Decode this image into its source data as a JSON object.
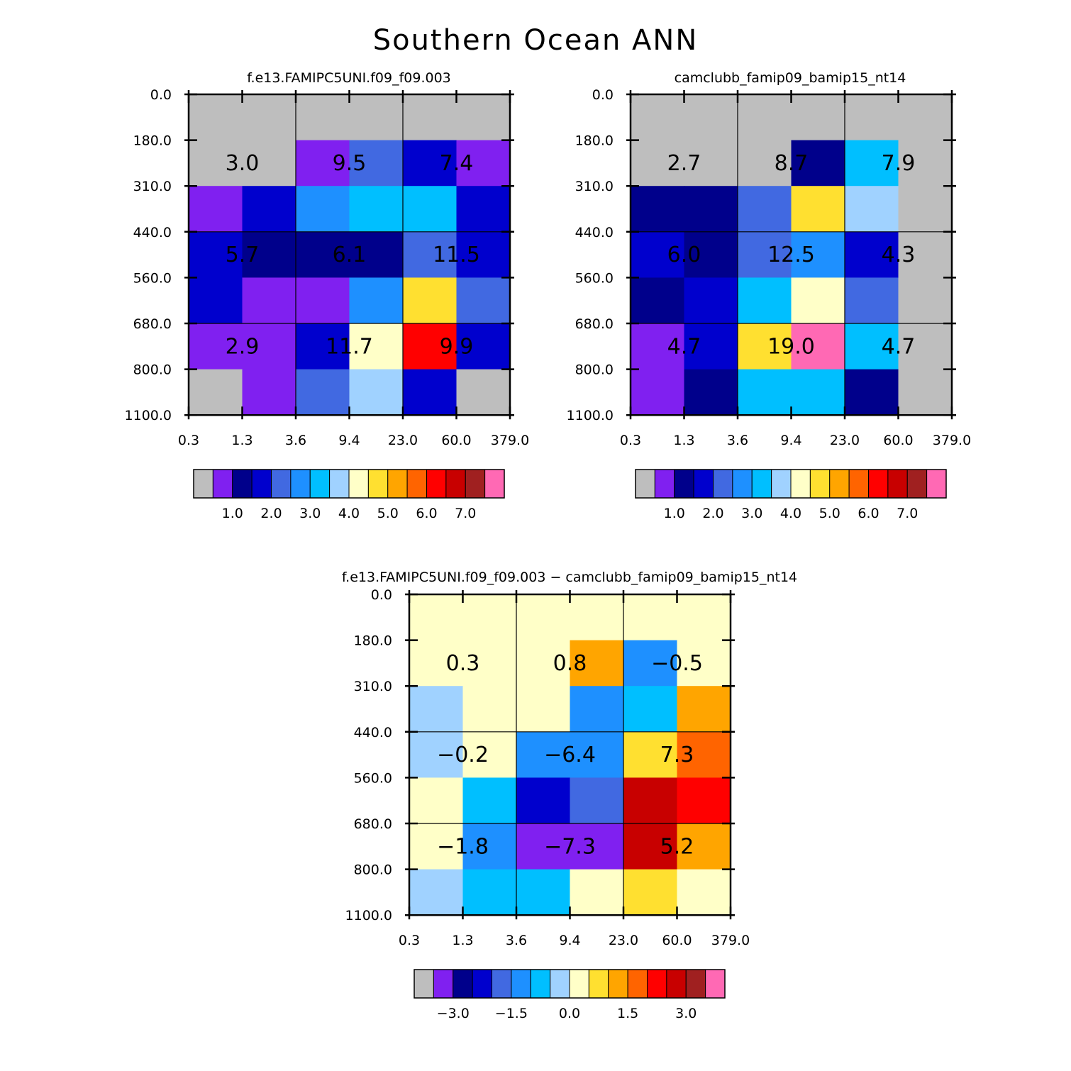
{
  "figure_title": "Southern Ocean ANN",
  "colors": {
    "abs_scale": [
      "#bebebe",
      "#8020f0",
      "#00008b",
      "#0000cd",
      "#4169e1",
      "#1e90ff",
      "#00bfff",
      "#a0d2ff",
      "#ffffc8",
      "#ffe030",
      "#ffa500",
      "#ff6400",
      "#ff0000",
      "#c80000",
      "#a02020",
      "#ff69b4"
    ],
    "diff_scale": [
      "#bebebe",
      "#8020f0",
      "#00008b",
      "#0000cd",
      "#4169e1",
      "#1e90ff",
      "#00bfff",
      "#a0d2ff",
      "#ffffc8",
      "#ffe030",
      "#ffa500",
      "#ff6400",
      "#ff0000",
      "#c80000",
      "#a02020",
      "#ff69b4"
    ]
  },
  "chart_data": [
    {
      "type": "heatmap",
      "id": "model",
      "title": "f.e13.FAMIPC5UNI.f09_f09.003",
      "x_ticks": [
        "0.3",
        "1.3",
        "3.6",
        "9.4",
        "23.0",
        "60.0",
        "379.0"
      ],
      "y_ticks": [
        "0.0",
        "180.0",
        "310.0",
        "440.0",
        "560.0",
        "680.0",
        "800.0",
        "1100.0"
      ],
      "grid": [
        [
          0,
          0,
          0,
          0,
          0,
          0
        ],
        [
          0,
          0,
          1,
          4,
          3,
          1
        ],
        [
          1,
          3,
          5,
          6,
          6,
          3
        ],
        [
          3,
          2,
          2,
          2,
          4,
          3
        ],
        [
          3,
          1,
          1,
          5,
          9,
          4
        ],
        [
          1,
          1,
          3,
          8,
          12,
          3
        ],
        [
          0,
          1,
          4,
          7,
          3,
          0
        ]
      ],
      "annotations": [
        [
          "3.0",
          "9.5",
          "7.4"
        ],
        [
          "5.7",
          "6.1",
          "11.5"
        ],
        [
          "2.9",
          "11.7",
          "9.9"
        ]
      ],
      "colorbar_labels": [
        "1.0",
        "2.0",
        "3.0",
        "4.0",
        "5.0",
        "6.0",
        "7.0"
      ],
      "scale": "abs_scale"
    },
    {
      "type": "heatmap",
      "id": "control",
      "title": "camclubb_famip09_bamip15_nt14",
      "x_ticks": [
        "0.3",
        "1.3",
        "3.6",
        "9.4",
        "23.0",
        "60.0",
        "379.0"
      ],
      "y_ticks": [
        "0.0",
        "180.0",
        "310.0",
        "440.0",
        "560.0",
        "680.0",
        "800.0",
        "1100.0"
      ],
      "grid": [
        [
          0,
          0,
          0,
          0,
          0,
          0
        ],
        [
          0,
          0,
          0,
          2,
          6,
          0
        ],
        [
          2,
          2,
          4,
          9,
          7,
          0
        ],
        [
          3,
          2,
          4,
          5,
          3,
          0
        ],
        [
          2,
          3,
          6,
          8,
          4,
          0
        ],
        [
          1,
          3,
          9,
          15,
          6,
          0
        ],
        [
          1,
          2,
          6,
          6,
          2,
          0
        ]
      ],
      "annotations": [
        [
          "2.7",
          "8.7",
          "7.9"
        ],
        [
          "6.0",
          "12.5",
          "4.3"
        ],
        [
          "4.7",
          "19.0",
          "4.7"
        ]
      ],
      "colorbar_labels": [
        "1.0",
        "2.0",
        "3.0",
        "4.0",
        "5.0",
        "6.0",
        "7.0"
      ],
      "scale": "abs_scale"
    },
    {
      "type": "heatmap",
      "id": "difference",
      "title": "f.e13.FAMIPC5UNI.f09_f09.003 − camclubb_famip09_bamip15_nt14",
      "x_ticks": [
        "0.3",
        "1.3",
        "3.6",
        "9.4",
        "23.0",
        "60.0",
        "379.0"
      ],
      "y_ticks": [
        "0.0",
        "180.0",
        "310.0",
        "440.0",
        "560.0",
        "680.0",
        "800.0",
        "1100.0"
      ],
      "grid": [
        [
          8,
          8,
          8,
          8,
          8,
          8
        ],
        [
          8,
          8,
          8,
          10,
          5,
          8
        ],
        [
          7,
          8,
          8,
          5,
          6,
          10
        ],
        [
          7,
          8,
          5,
          5,
          9,
          11
        ],
        [
          8,
          6,
          3,
          4,
          13,
          12
        ],
        [
          8,
          5,
          1,
          1,
          13,
          10
        ],
        [
          7,
          6,
          6,
          8,
          9,
          8
        ]
      ],
      "annotations": [
        [
          "0.3",
          "0.8",
          "−0.5"
        ],
        [
          "−0.2",
          "−6.4",
          "7.3"
        ],
        [
          "−1.8",
          "−7.3",
          "5.2"
        ]
      ],
      "colorbar_labels": [
        "−3.0",
        "−1.5",
        "0.0",
        "1.5",
        "3.0"
      ],
      "scale": "diff_scale"
    }
  ]
}
